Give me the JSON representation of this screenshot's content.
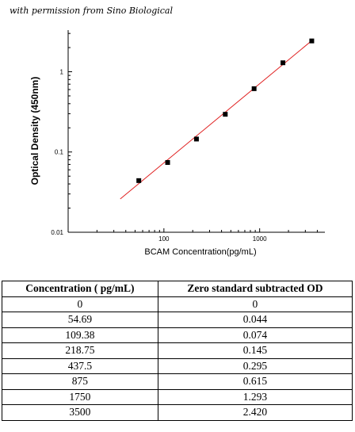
{
  "credit": "with permission from Sino Biological",
  "chart_data": {
    "type": "scatter",
    "xlabel": "BCAM Concentration(pg/mL)",
    "ylabel": "Optical Density (450nm)",
    "x_scale": "log",
    "y_scale": "log",
    "xlim": [
      10,
      4800
    ],
    "ylim": [
      0.01,
      3.3
    ],
    "x_ticks": [
      100,
      1000
    ],
    "x_tick_labels": [
      "100",
      "1000"
    ],
    "y_ticks": [
      0.01,
      0.1,
      1
    ],
    "y_tick_labels": [
      "0.01",
      "0.1",
      "1"
    ],
    "grid": false,
    "points": {
      "x": [
        54.69,
        109.38,
        218.75,
        437.5,
        875,
        1750,
        3500
      ],
      "y": [
        0.044,
        0.074,
        0.145,
        0.295,
        0.615,
        1.293,
        2.42
      ]
    },
    "fit_line": {
      "x": [
        35,
        3500
      ],
      "y": [
        0.026,
        2.44
      ],
      "color": "#e02020"
    },
    "marker_color": "#000000"
  },
  "table": {
    "headers": [
      "Concentration ( pg/mL)",
      "Zero standard subtracted OD"
    ],
    "rows": [
      [
        "0",
        "0"
      ],
      [
        "54.69",
        "0.044"
      ],
      [
        "109.38",
        "0.074"
      ],
      [
        "218.75",
        "0.145"
      ],
      [
        "437.5",
        "0.295"
      ],
      [
        "875",
        "0.615"
      ],
      [
        "1750",
        "1.293"
      ],
      [
        "3500",
        "2.420"
      ]
    ]
  }
}
